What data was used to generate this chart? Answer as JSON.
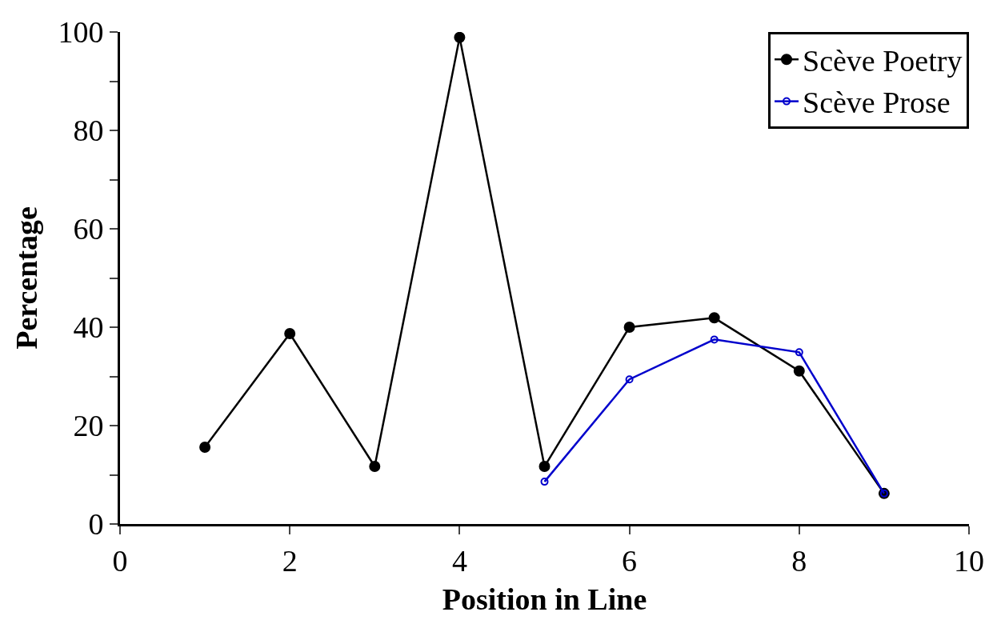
{
  "chart_data": {
    "type": "line",
    "xlabel": "Position in Line",
    "ylabel": "Percentage",
    "xlim": [
      0,
      10
    ],
    "xticks": [
      0,
      2,
      4,
      6,
      8,
      10
    ],
    "ylim": [
      0,
      100
    ],
    "yticks": [
      0,
      {
        "value": 10,
        "label": null
      },
      20,
      {
        "value": 30,
        "label": null
      },
      40,
      {
        "value": 50,
        "label": null
      },
      60,
      {
        "value": 70,
        "label": null
      },
      80,
      {
        "value": 90,
        "label": null
      },
      100
    ],
    "legend": "top right",
    "marker": "circle",
    "line_style": "solid",
    "series": [
      {
        "name": "Scève Poetry",
        "color": "#000000",
        "x": [
          1,
          2,
          3,
          4,
          5,
          6,
          7,
          8,
          9
        ],
        "values": [
          15.6,
          38.7,
          11.7,
          98.9,
          11.7,
          40,
          41.9,
          31.1,
          6.2
        ]
      },
      {
        "name": "Scève Prose",
        "color": "#0000cc",
        "x": [
          5,
          6,
          7,
          8,
          9
        ],
        "values": [
          8.6,
          29.4,
          37.5,
          34.9,
          6.2
        ]
      }
    ]
  }
}
